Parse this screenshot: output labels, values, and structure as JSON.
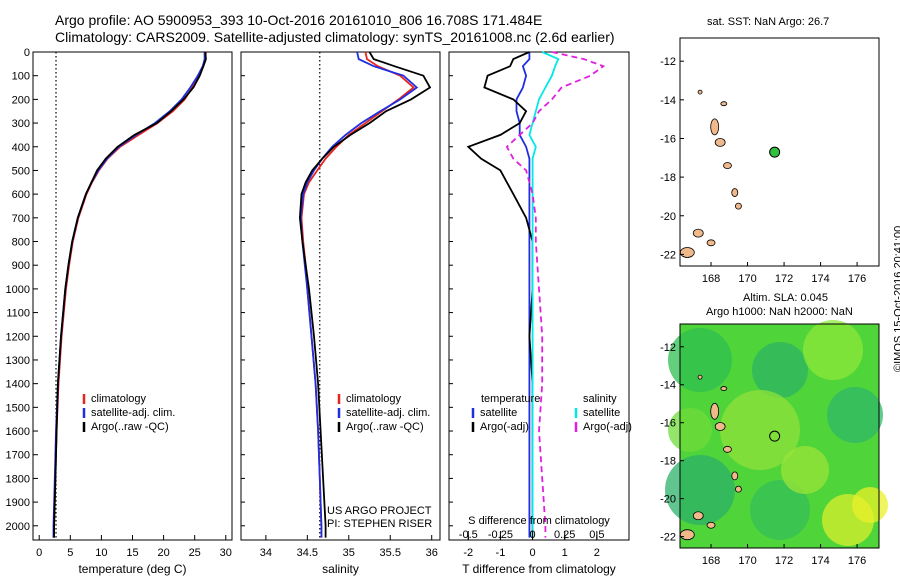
{
  "header": {
    "line1": "Argo profile: AO 5900953_393 10-Oct-2016 20161010_806 16.708S 171.484E",
    "line2": "Climatology: CARS2009. Satellite-adjusted climatology: synTS_20161008.nc (2.6d earlier)"
  },
  "project": {
    "line1": "US ARGO PROJECT",
    "line2": "PI: STEPHEN RISER"
  },
  "side_label": "©IMOS 15-Oct-2016 20:41:00",
  "map1": {
    "title": "sat. SST: NaN Argo: 26.7",
    "lon_ticks": [
      168,
      170,
      172,
      174,
      176
    ],
    "lat_ticks": [
      -12,
      -14,
      -16,
      -18,
      -20,
      -22
    ],
    "float_lon": 171.484,
    "float_lat": -16.708
  },
  "map2": {
    "title1": "Altim. SLA: 0.045",
    "title2": "Argo h1000: NaN h2000: NaN",
    "lon_ticks": [
      168,
      170,
      172,
      174,
      176
    ],
    "lat_ticks": [
      -12,
      -14,
      -16,
      -18,
      -20,
      -22
    ]
  },
  "chart_data": [
    {
      "type": "line",
      "panel": "temperature",
      "xlabel": "temperature (deg C)",
      "ylabel": "",
      "xlim": [
        -1,
        31
      ],
      "ylim": [
        2060,
        0
      ],
      "x_ticks": [
        0,
        5,
        10,
        15,
        20,
        25,
        30
      ],
      "y_ticks": [
        0,
        100,
        200,
        300,
        400,
        500,
        600,
        700,
        800,
        900,
        1000,
        1100,
        1200,
        1300,
        1400,
        1500,
        1600,
        1700,
        1800,
        1900,
        2000
      ],
      "reference_line": 2.7,
      "legend": [
        "climatology",
        "satellite-adj. clim.",
        "Argo(..raw -QC)"
      ],
      "depth": [
        0,
        30,
        60,
        100,
        150,
        200,
        250,
        300,
        350,
        400,
        450,
        500,
        550,
        600,
        700,
        800,
        900,
        1000,
        1200,
        1400,
        1600,
        1800,
        2000,
        2050
      ],
      "series": [
        {
          "name": "climatology",
          "color": "#e8241e",
          "values": [
            26.8,
            26.7,
            26.3,
            25.6,
            24.6,
            23.4,
            21.5,
            19.0,
            16.0,
            13.0,
            11.0,
            9.6,
            8.5,
            7.6,
            6.3,
            5.4,
            4.8,
            4.3,
            3.6,
            3.1,
            2.8,
            2.6,
            2.4,
            2.3
          ]
        },
        {
          "name": "satellite-adj. clim.",
          "color": "#1f2fe0",
          "values": [
            26.6,
            26.6,
            26.3,
            25.5,
            24.3,
            22.9,
            21.0,
            18.6,
            15.6,
            12.8,
            10.9,
            9.5,
            8.4,
            7.5,
            6.2,
            5.3,
            4.7,
            4.2,
            3.5,
            3.0,
            2.7,
            2.5,
            2.3,
            2.3
          ]
        },
        {
          "name": "Argo(..raw -QC)",
          "color": "#000000",
          "values": [
            26.7,
            26.8,
            26.4,
            25.8,
            24.8,
            23.2,
            21.2,
            18.9,
            15.3,
            12.6,
            10.7,
            9.3,
            8.4,
            7.5,
            6.2,
            5.3,
            4.7,
            4.2,
            3.5,
            3.0,
            2.8,
            2.6,
            2.4,
            2.4
          ]
        }
      ]
    },
    {
      "type": "line",
      "panel": "salinity",
      "xlabel": "salinity",
      "ylabel": "",
      "xlim": [
        33.7,
        36.1
      ],
      "ylim": [
        2060,
        0
      ],
      "x_ticks": [
        34,
        34.5,
        35,
        35.5,
        36
      ],
      "reference_line": 34.65,
      "legend": [
        "climatology",
        "satellite-adj. clim.",
        "Argo(..raw -QC)"
      ],
      "depth": [
        0,
        30,
        60,
        100,
        150,
        200,
        250,
        300,
        350,
        400,
        450,
        500,
        550,
        600,
        700,
        800,
        900,
        1000,
        1200,
        1400,
        1600,
        1800,
        2000,
        2050
      ],
      "series": [
        {
          "name": "climatology",
          "color": "#e8241e",
          "values": [
            35.2,
            35.22,
            35.35,
            35.62,
            35.78,
            35.6,
            35.4,
            35.2,
            35.0,
            34.85,
            34.72,
            34.62,
            34.52,
            34.46,
            34.43,
            34.45,
            34.48,
            34.5,
            34.55,
            34.6,
            34.63,
            34.65,
            34.67,
            34.67
          ]
        },
        {
          "name": "satellite-adj. clim.",
          "color": "#1f2fe0",
          "values": [
            35.1,
            35.12,
            35.3,
            35.66,
            35.82,
            35.62,
            35.38,
            35.15,
            34.96,
            34.8,
            34.68,
            34.58,
            34.5,
            34.45,
            34.42,
            34.44,
            34.47,
            34.5,
            34.55,
            34.6,
            34.63,
            34.65,
            34.67,
            34.67
          ]
        },
        {
          "name": "Argo(..raw -QC)",
          "color": "#000000",
          "values": [
            35.25,
            35.3,
            35.55,
            35.9,
            35.98,
            35.75,
            35.45,
            35.25,
            35.02,
            34.82,
            34.68,
            34.56,
            34.48,
            34.43,
            34.41,
            34.44,
            34.48,
            34.52,
            34.58,
            34.63,
            34.66,
            34.69,
            34.72,
            34.72
          ]
        }
      ]
    },
    {
      "type": "line",
      "panel": "difference",
      "xlabel": "T difference from climatology",
      "xlabel_top": "S difference from climatology",
      "xlim": [
        -2.6,
        3.0
      ],
      "ylim": [
        2060,
        0
      ],
      "x_ticks": [
        -2,
        -1,
        0,
        1,
        2
      ],
      "x_ticks_top": [
        -0.5,
        -0.25,
        0,
        0.25,
        0.5
      ],
      "legend_temperature_header": "temperature",
      "legend_salinity_header": "salinity",
      "legend": [
        "satellite",
        "Argo(-adj)",
        "satellite",
        "Argo(-adj)"
      ],
      "depth": [
        0,
        30,
        60,
        100,
        150,
        200,
        250,
        300,
        350,
        400,
        450,
        500,
        600,
        700,
        800,
        1000,
        1200,
        1400,
        1600,
        1800,
        2000,
        2050
      ],
      "series": [
        {
          "name": "temperature satellite",
          "color": "#1f2fe0",
          "dash": false,
          "values": [
            -0.1,
            -0.1,
            -0.3,
            -0.2,
            -0.3,
            -0.5,
            -0.5,
            -0.4,
            -0.4,
            -0.2,
            -0.1,
            -0.1,
            -0.1,
            -0.1,
            -0.1,
            -0.1,
            -0.1,
            -0.1,
            -0.1,
            -0.1,
            -0.1,
            -0.1
          ]
        },
        {
          "name": "temperature Argo(-adj)",
          "color": "#000000",
          "dash": false,
          "values": [
            -0.1,
            -0.6,
            -0.7,
            -1.4,
            -1.5,
            -0.6,
            -0.2,
            -0.4,
            -1.0,
            -2.0,
            -1.6,
            -1.0,
            -0.6,
            -0.2,
            0.0,
            0.0,
            -0.1,
            0.0,
            0.0,
            0.0,
            0.0,
            0.0
          ]
        },
        {
          "name": "salinity satellite",
          "color": "#00e8e8",
          "dash": false,
          "values": [
            0.3,
            0.8,
            0.7,
            0.6,
            0.4,
            0.2,
            0.1,
            0.0,
            -0.1,
            0.1,
            0.0,
            0.0,
            0.0,
            0.0,
            0.0,
            0.0,
            0.0,
            0.0,
            0.0,
            0.0,
            0.0,
            0.0
          ]
        },
        {
          "name": "salinity Argo(-adj)",
          "color": "#e020e0",
          "dash": true,
          "values": [
            0.6,
            1.6,
            2.2,
            1.8,
            0.9,
            0.6,
            0.2,
            0.0,
            -0.4,
            -0.8,
            -0.6,
            -0.2,
            0.0,
            0.1,
            0.1,
            0.2,
            0.3,
            0.3,
            0.2,
            0.3,
            0.4,
            0.4
          ]
        }
      ]
    }
  ]
}
